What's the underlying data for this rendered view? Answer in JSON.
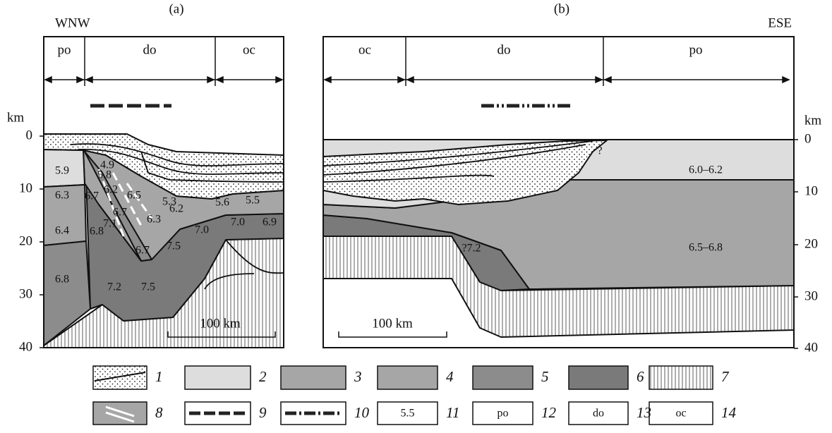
{
  "panels": [
    {
      "label": "(a)",
      "direction": "WNW",
      "zones": [
        "po",
        "do",
        "oc"
      ],
      "depth_unit": "km",
      "depth_ticks": [
        "0",
        "10",
        "20",
        "30",
        "40"
      ],
      "scale_bar": "100 km",
      "velocities": [
        "5.9",
        "6.3",
        "6.4",
        "6.8",
        "4.9",
        "5.8",
        "6.2",
        "6.5",
        "6.7",
        "6.7",
        "7.1",
        "6.8",
        "6.3",
        "5.3",
        "6.2",
        "5.6",
        "5.5",
        "7.0",
        "7.0",
        "6.9",
        "6.7",
        "7.5",
        "7.2",
        "7.5"
      ]
    },
    {
      "label": "(b)",
      "direction": "ESE",
      "zones": [
        "oc",
        "do",
        "po"
      ],
      "depth_unit": "km",
      "depth_ticks": [
        "0",
        "10",
        "20",
        "30",
        "40"
      ],
      "scale_bar": "100 km",
      "velocities": [
        "?",
        "6.0–6.2",
        "6.5–6.8",
        "?7.2"
      ]
    }
  ],
  "legend": [
    {
      "number": "1"
    },
    {
      "number": "2"
    },
    {
      "number": "3"
    },
    {
      "number": "4"
    },
    {
      "number": "5"
    },
    {
      "number": "6"
    },
    {
      "number": "7"
    },
    {
      "number": "8"
    },
    {
      "number": "9"
    },
    {
      "number": "10"
    },
    {
      "number": "11",
      "sample": "5.5"
    },
    {
      "number": "12",
      "sample": "po"
    },
    {
      "number": "13",
      "sample": "do"
    },
    {
      "number": "14",
      "sample": "oc"
    }
  ]
}
